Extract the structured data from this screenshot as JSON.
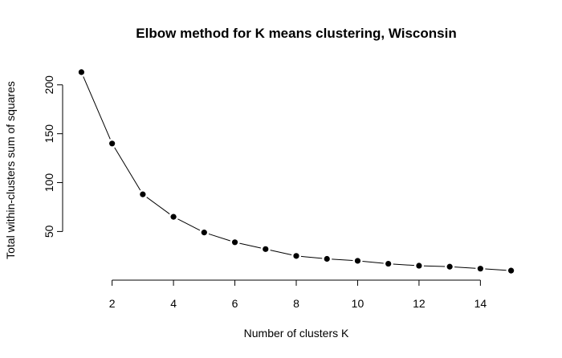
{
  "chart_data": {
    "type": "line",
    "title": "Elbow method for K means clustering, Wisconsin",
    "xlabel": "Number of clusters K",
    "ylabel": "Total within-clusters sum of squares",
    "x": [
      1,
      2,
      3,
      4,
      5,
      6,
      7,
      8,
      9,
      10,
      11,
      12,
      13,
      14,
      15
    ],
    "series": [
      {
        "values": [
          213,
          140,
          88,
          65,
          49,
          39,
          32,
          25,
          22,
          20,
          17,
          15,
          14,
          12,
          10
        ]
      }
    ],
    "xticks": [
      2,
      4,
      6,
      8,
      10,
      12,
      14
    ],
    "yticks": [
      50,
      100,
      150,
      200
    ],
    "xlim": [
      0.44,
      15.56
    ],
    "ylim": [
      1.88,
      221.12
    ],
    "markers": "filled-circle",
    "grid": false,
    "legend": "none"
  }
}
